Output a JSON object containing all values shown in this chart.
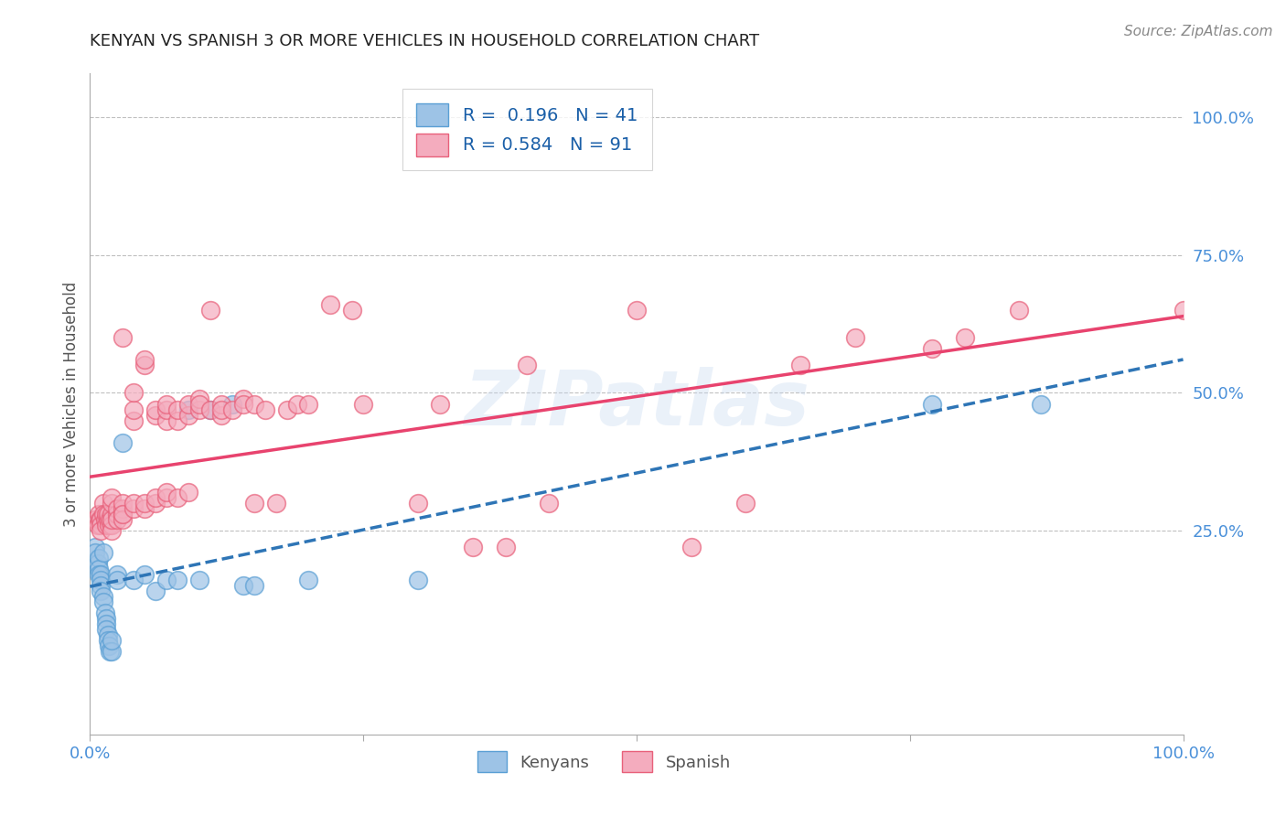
{
  "title": "KENYAN VS SPANISH 3 OR MORE VEHICLES IN HOUSEHOLD CORRELATION CHART",
  "source": "Source: ZipAtlas.com",
  "ylabel": "3 or more Vehicles in Household",
  "xlim": [
    0,
    1
  ],
  "ylim": [
    -0.12,
    1.08
  ],
  "ytick_labels": [
    "25.0%",
    "50.0%",
    "75.0%",
    "100.0%"
  ],
  "ytick_values": [
    0.25,
    0.5,
    0.75,
    1.0
  ],
  "legend_kenyan_R": "0.196",
  "legend_kenyan_N": "41",
  "legend_spanish_R": "0.584",
  "legend_spanish_N": "91",
  "kenyan_color": "#9dc3e6",
  "kenyan_edge_color": "#5a9fd4",
  "spanish_color": "#f4acbe",
  "spanish_edge_color": "#e8607a",
  "kenyan_line_color": "#2e75b6",
  "spanish_line_color": "#e8436e",
  "kenyan_scatter": [
    [
      0.005,
      0.22
    ],
    [
      0.005,
      0.21
    ],
    [
      0.007,
      0.19
    ],
    [
      0.008,
      0.2
    ],
    [
      0.008,
      0.18
    ],
    [
      0.008,
      0.17
    ],
    [
      0.01,
      0.17
    ],
    [
      0.01,
      0.16
    ],
    [
      0.01,
      0.15
    ],
    [
      0.01,
      0.14
    ],
    [
      0.012,
      0.21
    ],
    [
      0.012,
      0.13
    ],
    [
      0.012,
      0.12
    ],
    [
      0.014,
      0.1
    ],
    [
      0.015,
      0.09
    ],
    [
      0.015,
      0.08
    ],
    [
      0.015,
      0.07
    ],
    [
      0.016,
      0.06
    ],
    [
      0.016,
      0.05
    ],
    [
      0.017,
      0.04
    ],
    [
      0.018,
      0.03
    ],
    [
      0.02,
      0.03
    ],
    [
      0.02,
      0.05
    ],
    [
      0.025,
      0.17
    ],
    [
      0.025,
      0.16
    ],
    [
      0.03,
      0.41
    ],
    [
      0.04,
      0.16
    ],
    [
      0.05,
      0.17
    ],
    [
      0.06,
      0.14
    ],
    [
      0.07,
      0.16
    ],
    [
      0.08,
      0.16
    ],
    [
      0.09,
      0.47
    ],
    [
      0.1,
      0.16
    ],
    [
      0.11,
      0.47
    ],
    [
      0.13,
      0.48
    ],
    [
      0.14,
      0.15
    ],
    [
      0.15,
      0.15
    ],
    [
      0.2,
      0.16
    ],
    [
      0.3,
      0.16
    ],
    [
      0.77,
      0.48
    ],
    [
      0.87,
      0.48
    ]
  ],
  "spanish_scatter": [
    [
      0.005,
      0.27
    ],
    [
      0.007,
      0.26
    ],
    [
      0.008,
      0.28
    ],
    [
      0.009,
      0.27
    ],
    [
      0.01,
      0.27
    ],
    [
      0.01,
      0.26
    ],
    [
      0.01,
      0.25
    ],
    [
      0.012,
      0.3
    ],
    [
      0.012,
      0.28
    ],
    [
      0.014,
      0.27
    ],
    [
      0.015,
      0.26
    ],
    [
      0.015,
      0.28
    ],
    [
      0.016,
      0.27
    ],
    [
      0.016,
      0.28
    ],
    [
      0.017,
      0.26
    ],
    [
      0.018,
      0.27
    ],
    [
      0.02,
      0.28
    ],
    [
      0.02,
      0.26
    ],
    [
      0.02,
      0.25
    ],
    [
      0.02,
      0.27
    ],
    [
      0.02,
      0.3
    ],
    [
      0.02,
      0.31
    ],
    [
      0.025,
      0.28
    ],
    [
      0.025,
      0.29
    ],
    [
      0.025,
      0.27
    ],
    [
      0.03,
      0.28
    ],
    [
      0.03,
      0.29
    ],
    [
      0.03,
      0.3
    ],
    [
      0.03,
      0.27
    ],
    [
      0.03,
      0.28
    ],
    [
      0.03,
      0.6
    ],
    [
      0.04,
      0.29
    ],
    [
      0.04,
      0.3
    ],
    [
      0.04,
      0.45
    ],
    [
      0.04,
      0.47
    ],
    [
      0.04,
      0.5
    ],
    [
      0.05,
      0.29
    ],
    [
      0.05,
      0.3
    ],
    [
      0.05,
      0.55
    ],
    [
      0.05,
      0.56
    ],
    [
      0.06,
      0.3
    ],
    [
      0.06,
      0.31
    ],
    [
      0.06,
      0.46
    ],
    [
      0.06,
      0.47
    ],
    [
      0.07,
      0.31
    ],
    [
      0.07,
      0.32
    ],
    [
      0.07,
      0.45
    ],
    [
      0.07,
      0.47
    ],
    [
      0.07,
      0.48
    ],
    [
      0.08,
      0.31
    ],
    [
      0.08,
      0.45
    ],
    [
      0.08,
      0.47
    ],
    [
      0.09,
      0.32
    ],
    [
      0.09,
      0.46
    ],
    [
      0.09,
      0.48
    ],
    [
      0.1,
      0.47
    ],
    [
      0.1,
      0.49
    ],
    [
      0.1,
      0.48
    ],
    [
      0.11,
      0.47
    ],
    [
      0.11,
      0.65
    ],
    [
      0.12,
      0.46
    ],
    [
      0.12,
      0.48
    ],
    [
      0.12,
      0.47
    ],
    [
      0.13,
      0.47
    ],
    [
      0.14,
      0.49
    ],
    [
      0.14,
      0.48
    ],
    [
      0.15,
      0.48
    ],
    [
      0.15,
      0.3
    ],
    [
      0.16,
      0.47
    ],
    [
      0.17,
      0.3
    ],
    [
      0.18,
      0.47
    ],
    [
      0.19,
      0.48
    ],
    [
      0.2,
      0.48
    ],
    [
      0.22,
      0.66
    ],
    [
      0.24,
      0.65
    ],
    [
      0.25,
      0.48
    ],
    [
      0.3,
      0.3
    ],
    [
      0.32,
      0.48
    ],
    [
      0.35,
      0.22
    ],
    [
      0.38,
      0.22
    ],
    [
      0.4,
      0.55
    ],
    [
      0.42,
      0.3
    ],
    [
      0.5,
      0.65
    ],
    [
      0.55,
      0.22
    ],
    [
      0.6,
      0.3
    ],
    [
      0.65,
      0.55
    ],
    [
      0.7,
      0.6
    ],
    [
      0.77,
      0.58
    ],
    [
      0.8,
      0.6
    ],
    [
      0.85,
      0.65
    ],
    [
      1.0,
      0.65
    ]
  ],
  "watermark_text": "ZIPatlas",
  "background_color": "#ffffff",
  "grid_color": "#c0c0c0",
  "title_color": "#222222",
  "axis_label_color": "#555555",
  "tick_color_x": "#4a90d9",
  "tick_color_y": "#4a90d9"
}
